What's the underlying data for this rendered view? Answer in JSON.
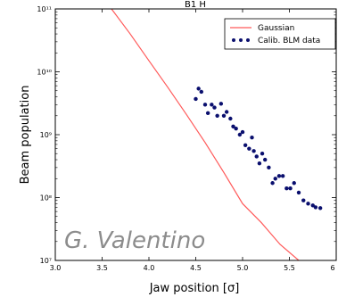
{
  "chart_data": {
    "type": "scatter",
    "title": "B1 H",
    "xlabel": "Jaw position [σ]",
    "ylabel": "Beam population",
    "xlim": [
      3.0,
      6.0
    ],
    "ylim": [
      10000000,
      100000000000
    ],
    "yscale": "log",
    "x_ticks": [
      "3.0",
      "3.5",
      "4.0",
      "4.5",
      "5.0",
      "5.5",
      "6"
    ],
    "y_ticks": [
      {
        "value": 10000000,
        "label": "10⁷"
      },
      {
        "value": 100000000,
        "label": "10⁸"
      },
      {
        "value": 1000000000,
        "label": "10⁹"
      },
      {
        "value": 10000000000,
        "label": "10¹⁰"
      },
      {
        "value": 100000000000,
        "label": "10¹¹"
      }
    ],
    "grid": false,
    "legend_position": "top-right",
    "series": [
      {
        "name": "Gaussian",
        "kind": "line",
        "color": "#ff5a5a",
        "points": [
          {
            "x": 3.6,
            "y": 100000000000
          },
          {
            "x": 3.8,
            "y": 40000000000
          },
          {
            "x": 4.0,
            "y": 15000000000
          },
          {
            "x": 4.2,
            "y": 5700000000
          },
          {
            "x": 4.4,
            "y": 2100000000
          },
          {
            "x": 4.6,
            "y": 750000000
          },
          {
            "x": 4.8,
            "y": 250000000
          },
          {
            "x": 5.0,
            "y": 80000000
          },
          {
            "x": 5.2,
            "y": 40000000
          },
          {
            "x": 5.4,
            "y": 18000000
          },
          {
            "x": 5.6,
            "y": 10000000
          }
        ]
      },
      {
        "name": "Calib. BLM data",
        "kind": "scatter",
        "color": "#0a0f6e",
        "points": [
          {
            "x": 4.5,
            "y": 3700000000
          },
          {
            "x": 4.53,
            "y": 5400000000
          },
          {
            "x": 4.56,
            "y": 4800000000
          },
          {
            "x": 4.6,
            "y": 3000000000
          },
          {
            "x": 4.63,
            "y": 2200000000
          },
          {
            "x": 4.67,
            "y": 3000000000
          },
          {
            "x": 4.7,
            "y": 2700000000
          },
          {
            "x": 4.73,
            "y": 2000000000
          },
          {
            "x": 4.77,
            "y": 3100000000
          },
          {
            "x": 4.8,
            "y": 2000000000
          },
          {
            "x": 4.83,
            "y": 2300000000
          },
          {
            "x": 4.87,
            "y": 1800000000
          },
          {
            "x": 4.9,
            "y": 1350000000
          },
          {
            "x": 4.93,
            "y": 1250000000
          },
          {
            "x": 4.97,
            "y": 1000000000
          },
          {
            "x": 5.0,
            "y": 1100000000
          },
          {
            "x": 5.03,
            "y": 680000000
          },
          {
            "x": 5.07,
            "y": 600000000
          },
          {
            "x": 5.1,
            "y": 900000000
          },
          {
            "x": 5.12,
            "y": 550000000
          },
          {
            "x": 5.15,
            "y": 450000000
          },
          {
            "x": 5.18,
            "y": 350000000
          },
          {
            "x": 5.21,
            "y": 500000000
          },
          {
            "x": 5.24,
            "y": 400000000
          },
          {
            "x": 5.28,
            "y": 300000000
          },
          {
            "x": 5.32,
            "y": 170000000
          },
          {
            "x": 5.35,
            "y": 200000000
          },
          {
            "x": 5.39,
            "y": 220000000
          },
          {
            "x": 5.43,
            "y": 220000000
          },
          {
            "x": 5.47,
            "y": 140000000
          },
          {
            "x": 5.51,
            "y": 140000000
          },
          {
            "x": 5.55,
            "y": 170000000
          },
          {
            "x": 5.6,
            "y": 120000000
          },
          {
            "x": 5.65,
            "y": 90000000
          },
          {
            "x": 5.7,
            "y": 80000000
          },
          {
            "x": 5.75,
            "y": 75000000
          },
          {
            "x": 5.78,
            "y": 70000000
          },
          {
            "x": 5.83,
            "y": 68000000
          }
        ]
      }
    ]
  },
  "watermark": "G. Valentino"
}
